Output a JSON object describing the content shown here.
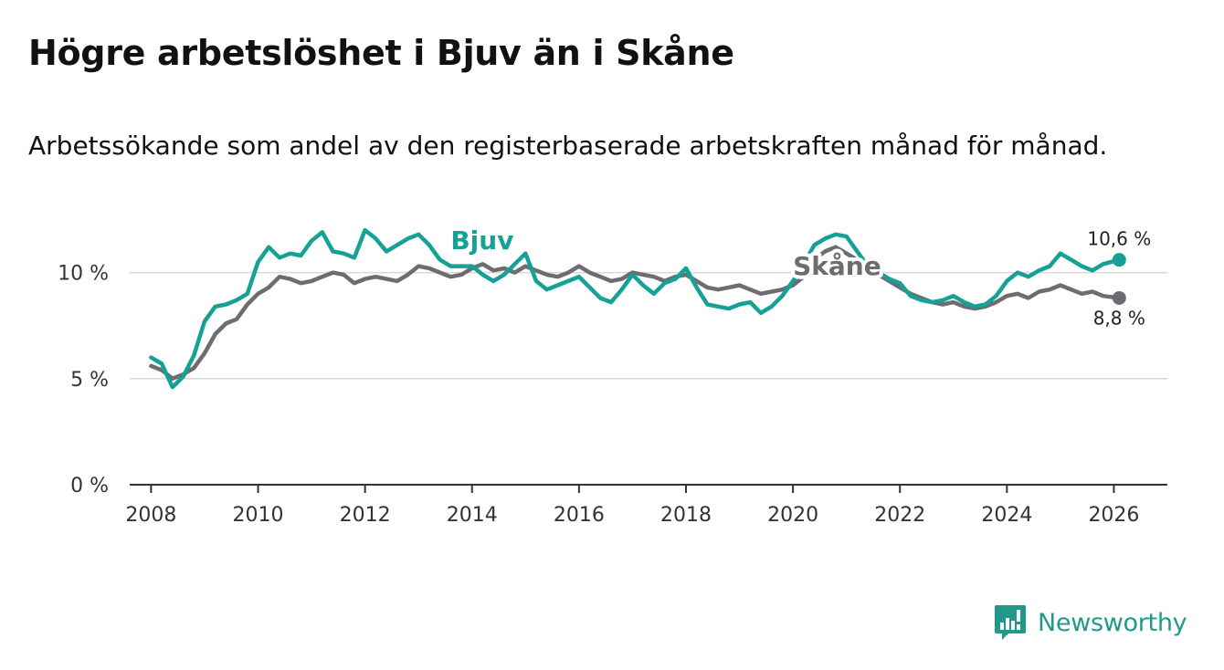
{
  "title": "Högre arbetslöshet i Bjuv än i Skåne",
  "subtitle": "Arbetssökande som andel av den registerbaserade arbetskraften månad för månad.",
  "brand": {
    "name": "Newsworthy",
    "color": "#1f9a8a",
    "icon": "newsworthy-logo-icon"
  },
  "chart_data": {
    "type": "line",
    "title": "Högre arbetslöshet i Bjuv än i Skåne",
    "xlabel": "",
    "ylabel": "",
    "xlim": [
      2007.6,
      2027.0
    ],
    "ylim": [
      0,
      10.8
    ],
    "yticks": [
      0,
      5,
      10
    ],
    "ytick_labels": [
      "0 %",
      "5 %",
      "10 %"
    ],
    "xticks": [
      2008,
      2010,
      2012,
      2014,
      2016,
      2018,
      2020,
      2022,
      2024,
      2026
    ],
    "xtick_labels": [
      "2008",
      "2010",
      "2012",
      "2014",
      "2016",
      "2018",
      "2020",
      "2022",
      "2024",
      "2026"
    ],
    "grid": true,
    "series": [
      {
        "name": "Skåne",
        "label": "Skåne",
        "color": "#6e6c70",
        "end_label": "8,8 %",
        "points": [
          [
            2008.0,
            5.6
          ],
          [
            2008.2,
            5.4
          ],
          [
            2008.4,
            5.0
          ],
          [
            2008.6,
            5.2
          ],
          [
            2008.8,
            5.5
          ],
          [
            2009.0,
            6.2
          ],
          [
            2009.2,
            7.1
          ],
          [
            2009.4,
            7.6
          ],
          [
            2009.6,
            7.8
          ],
          [
            2009.8,
            8.5
          ],
          [
            2010.0,
            9.0
          ],
          [
            2010.2,
            9.3
          ],
          [
            2010.4,
            9.8
          ],
          [
            2010.6,
            9.7
          ],
          [
            2010.8,
            9.5
          ],
          [
            2011.0,
            9.6
          ],
          [
            2011.2,
            9.8
          ],
          [
            2011.4,
            10.0
          ],
          [
            2011.6,
            9.9
          ],
          [
            2011.8,
            9.5
          ],
          [
            2012.0,
            9.7
          ],
          [
            2012.2,
            9.8
          ],
          [
            2012.4,
            9.7
          ],
          [
            2012.6,
            9.6
          ],
          [
            2012.8,
            9.9
          ],
          [
            2013.0,
            10.3
          ],
          [
            2013.2,
            10.2
          ],
          [
            2013.4,
            10.0
          ],
          [
            2013.6,
            9.8
          ],
          [
            2013.8,
            9.9
          ],
          [
            2014.0,
            10.2
          ],
          [
            2014.2,
            10.4
          ],
          [
            2014.4,
            10.1
          ],
          [
            2014.6,
            10.2
          ],
          [
            2014.8,
            10.0
          ],
          [
            2015.0,
            10.3
          ],
          [
            2015.2,
            10.1
          ],
          [
            2015.4,
            9.9
          ],
          [
            2015.6,
            9.8
          ],
          [
            2015.8,
            10.0
          ],
          [
            2016.0,
            10.3
          ],
          [
            2016.2,
            10.0
          ],
          [
            2016.4,
            9.8
          ],
          [
            2016.6,
            9.6
          ],
          [
            2016.8,
            9.7
          ],
          [
            2017.0,
            10.0
          ],
          [
            2017.2,
            9.9
          ],
          [
            2017.4,
            9.8
          ],
          [
            2017.6,
            9.6
          ],
          [
            2017.8,
            9.8
          ],
          [
            2018.0,
            9.9
          ],
          [
            2018.2,
            9.6
          ],
          [
            2018.4,
            9.3
          ],
          [
            2018.6,
            9.2
          ],
          [
            2018.8,
            9.3
          ],
          [
            2019.0,
            9.4
          ],
          [
            2019.2,
            9.2
          ],
          [
            2019.4,
            9.0
          ],
          [
            2019.6,
            9.1
          ],
          [
            2019.8,
            9.2
          ],
          [
            2020.0,
            9.4
          ],
          [
            2020.2,
            9.8
          ],
          [
            2020.4,
            10.6
          ],
          [
            2020.6,
            11.0
          ],
          [
            2020.8,
            11.2
          ],
          [
            2021.0,
            10.9
          ],
          [
            2021.2,
            10.6
          ],
          [
            2021.4,
            10.2
          ],
          [
            2021.6,
            9.9
          ],
          [
            2021.8,
            9.6
          ],
          [
            2022.0,
            9.3
          ],
          [
            2022.2,
            9.0
          ],
          [
            2022.4,
            8.8
          ],
          [
            2022.6,
            8.6
          ],
          [
            2022.8,
            8.5
          ],
          [
            2023.0,
            8.6
          ],
          [
            2023.2,
            8.4
          ],
          [
            2023.4,
            8.3
          ],
          [
            2023.6,
            8.4
          ],
          [
            2023.8,
            8.6
          ],
          [
            2024.0,
            8.9
          ],
          [
            2024.2,
            9.0
          ],
          [
            2024.4,
            8.8
          ],
          [
            2024.6,
            9.1
          ],
          [
            2024.8,
            9.2
          ],
          [
            2025.0,
            9.4
          ],
          [
            2025.2,
            9.2
          ],
          [
            2025.4,
            9.0
          ],
          [
            2025.6,
            9.1
          ],
          [
            2025.8,
            8.9
          ],
          [
            2026.1,
            8.8
          ]
        ]
      },
      {
        "name": "Bjuv",
        "label": "Bjuv",
        "color": "#16a196",
        "end_label": "10,6 %",
        "points": [
          [
            2008.0,
            6.0
          ],
          [
            2008.2,
            5.7
          ],
          [
            2008.4,
            4.6
          ],
          [
            2008.6,
            5.1
          ],
          [
            2008.8,
            6.1
          ],
          [
            2009.0,
            7.7
          ],
          [
            2009.2,
            8.4
          ],
          [
            2009.4,
            8.5
          ],
          [
            2009.6,
            8.7
          ],
          [
            2009.8,
            9.0
          ],
          [
            2010.0,
            10.5
          ],
          [
            2010.2,
            11.2
          ],
          [
            2010.4,
            10.7
          ],
          [
            2010.6,
            10.9
          ],
          [
            2010.8,
            10.8
          ],
          [
            2011.0,
            11.5
          ],
          [
            2011.2,
            11.9
          ],
          [
            2011.4,
            11.0
          ],
          [
            2011.6,
            10.9
          ],
          [
            2011.8,
            10.7
          ],
          [
            2012.0,
            12.0
          ],
          [
            2012.2,
            11.6
          ],
          [
            2012.4,
            11.0
          ],
          [
            2012.6,
            11.3
          ],
          [
            2012.8,
            11.6
          ],
          [
            2013.0,
            11.8
          ],
          [
            2013.2,
            11.3
          ],
          [
            2013.4,
            10.6
          ],
          [
            2013.6,
            10.3
          ],
          [
            2013.8,
            10.3
          ],
          [
            2014.0,
            10.3
          ],
          [
            2014.2,
            9.9
          ],
          [
            2014.4,
            9.6
          ],
          [
            2014.6,
            9.9
          ],
          [
            2014.8,
            10.4
          ],
          [
            2015.0,
            10.9
          ],
          [
            2015.2,
            9.6
          ],
          [
            2015.4,
            9.2
          ],
          [
            2015.6,
            9.4
          ],
          [
            2015.8,
            9.6
          ],
          [
            2016.0,
            9.8
          ],
          [
            2016.2,
            9.3
          ],
          [
            2016.4,
            8.8
          ],
          [
            2016.6,
            8.6
          ],
          [
            2016.8,
            9.2
          ],
          [
            2017.0,
            9.9
          ],
          [
            2017.2,
            9.4
          ],
          [
            2017.4,
            9.0
          ],
          [
            2017.6,
            9.5
          ],
          [
            2017.8,
            9.7
          ],
          [
            2018.0,
            10.2
          ],
          [
            2018.2,
            9.3
          ],
          [
            2018.4,
            8.5
          ],
          [
            2018.6,
            8.4
          ],
          [
            2018.8,
            8.3
          ],
          [
            2019.0,
            8.5
          ],
          [
            2019.2,
            8.6
          ],
          [
            2019.4,
            8.1
          ],
          [
            2019.6,
            8.4
          ],
          [
            2019.8,
            8.9
          ],
          [
            2020.0,
            9.6
          ],
          [
            2020.2,
            10.4
          ],
          [
            2020.4,
            11.3
          ],
          [
            2020.6,
            11.6
          ],
          [
            2020.8,
            11.8
          ],
          [
            2021.0,
            11.7
          ],
          [
            2021.2,
            11.0
          ],
          [
            2021.4,
            10.3
          ],
          [
            2021.6,
            10.0
          ],
          [
            2021.8,
            9.7
          ],
          [
            2022.0,
            9.5
          ],
          [
            2022.2,
            8.9
          ],
          [
            2022.4,
            8.7
          ],
          [
            2022.6,
            8.6
          ],
          [
            2022.8,
            8.7
          ],
          [
            2023.0,
            8.9
          ],
          [
            2023.2,
            8.6
          ],
          [
            2023.4,
            8.4
          ],
          [
            2023.6,
            8.5
          ],
          [
            2023.8,
            8.9
          ],
          [
            2024.0,
            9.6
          ],
          [
            2024.2,
            10.0
          ],
          [
            2024.4,
            9.8
          ],
          [
            2024.6,
            10.1
          ],
          [
            2024.8,
            10.3
          ],
          [
            2025.0,
            10.9
          ],
          [
            2025.2,
            10.6
          ],
          [
            2025.4,
            10.3
          ],
          [
            2025.6,
            10.1
          ],
          [
            2025.8,
            10.4
          ],
          [
            2026.1,
            10.6
          ]
        ]
      }
    ],
    "annotations": [
      {
        "text": "Bjuv",
        "series": "Bjuv",
        "at_x": 2013.6,
        "at_y": 11.1
      },
      {
        "text": "Skåne",
        "series": "Skåne",
        "at_x": 2020.0,
        "at_y": 9.9
      }
    ]
  }
}
